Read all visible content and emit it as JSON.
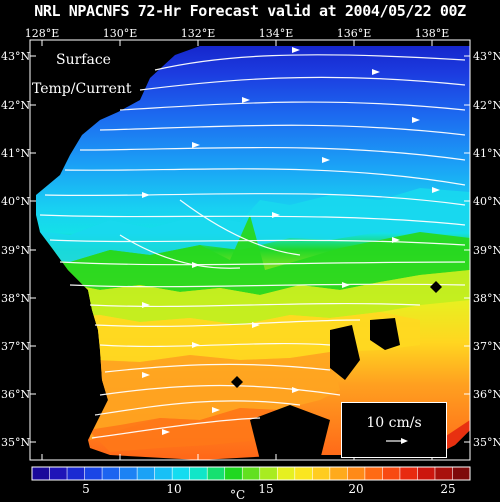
{
  "title": "NRL NPACNFS 72-Hr Forecast valid at 2004/05/22 00Z",
  "map_label_line1": "Surface",
  "map_label_line2": "Temp/Current",
  "lon_labels": [
    "128°E",
    "130°E",
    "132°E",
    "134°E",
    "136°E",
    "138°E"
  ],
  "lat_labels": [
    "43°N",
    "42°N",
    "41°N",
    "40°N",
    "39°N",
    "38°N",
    "37°N",
    "36°N",
    "35°N"
  ],
  "vector_legend": "10 cm/s",
  "colorbar": {
    "ticks": [
      "5",
      "10",
      "15",
      "20",
      "25"
    ],
    "unit": "°C",
    "colors": [
      "#1a0a9a",
      "#1f14b8",
      "#1b2ad2",
      "#1a46e6",
      "#1c64f0",
      "#1c82f4",
      "#1ba2f6",
      "#18c0f6",
      "#14dcf0",
      "#10e6c8",
      "#16e070",
      "#20d820",
      "#62e020",
      "#a8ec20",
      "#e6f020",
      "#fae620",
      "#ffcc20",
      "#ffaa1c",
      "#ff8a18",
      "#ff6a14",
      "#f84a12",
      "#e82a10",
      "#cc160e",
      "#a8100c",
      "#7e0a0a"
    ]
  },
  "water_colors": {
    "deep_blue": "#1530d8",
    "blue": "#1c6af0",
    "light_blue": "#1cb6f8",
    "cyan": "#18dcee",
    "green": "#22d820",
    "yellow_green": "#b4ec20",
    "yellow": "#f4ec20",
    "orange": "#ffa820",
    "red": "#ff5a18"
  },
  "land_color": "#000000",
  "island_symbol": "diamond-icon"
}
